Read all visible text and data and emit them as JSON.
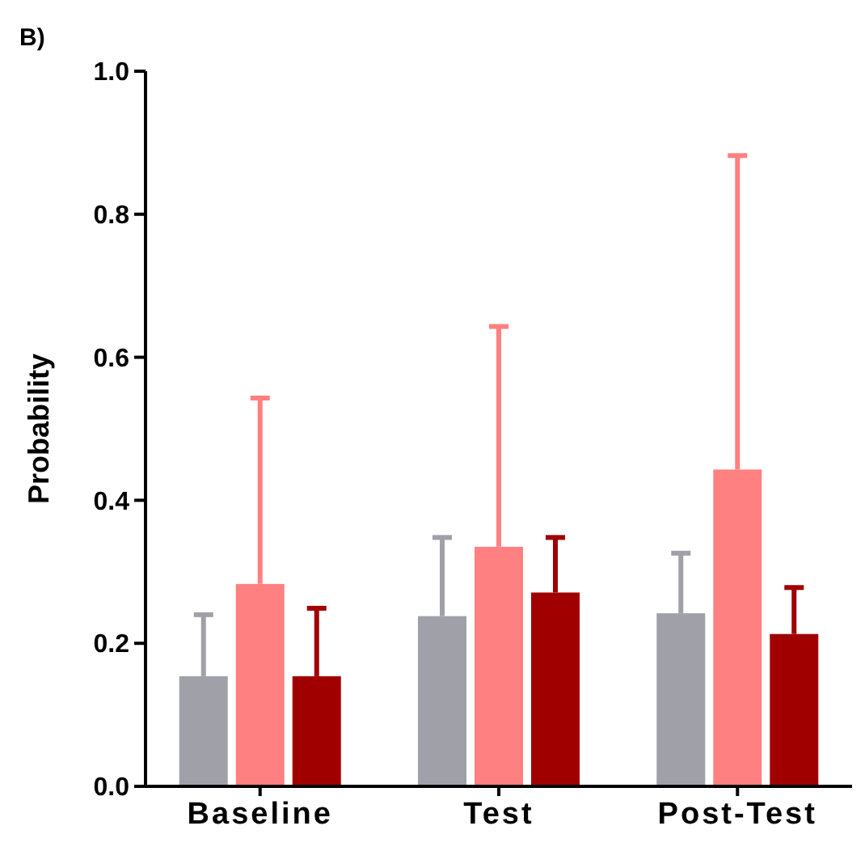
{
  "chart_data": {
    "type": "bar",
    "ylabel": "Probability",
    "annotations": [
      "B)"
    ],
    "categories": [
      "Baseline",
      "Test",
      "Post-Test"
    ],
    "series": [
      {
        "color": "#a0a0a8",
        "values": [
          0.154,
          0.238,
          0.242
        ],
        "errors": [
          [
            0.154,
            0.24
          ],
          [
            0.238,
            0.348
          ],
          [
            0.242,
            0.326
          ]
        ]
      },
      {
        "color": "#ff8080",
        "values": [
          0.283,
          0.335,
          0.443
        ],
        "errors": [
          [
            0.283,
            0.543
          ],
          [
            0.335,
            0.643
          ],
          [
            0.443,
            0.882
          ]
        ]
      },
      {
        "color": "#a00000",
        "values": [
          0.154,
          0.271,
          0.213
        ],
        "errors": [
          [
            0.154,
            0.249
          ],
          [
            0.271,
            0.348
          ],
          [
            0.213,
            0.278
          ]
        ]
      }
    ],
    "ylim": [
      0,
      1
    ],
    "yticks": [
      {
        "value": 0,
        "label": "0.0"
      },
      {
        "value": 0.2,
        "label": "0.2"
      },
      {
        "value": 0.4,
        "label": "0.4"
      },
      {
        "value": 0.6,
        "label": "0.6"
      },
      {
        "value": 0.8,
        "label": "0.8"
      },
      {
        "value": 1,
        "label": "1.0"
      }
    ],
    "grid": false
  }
}
